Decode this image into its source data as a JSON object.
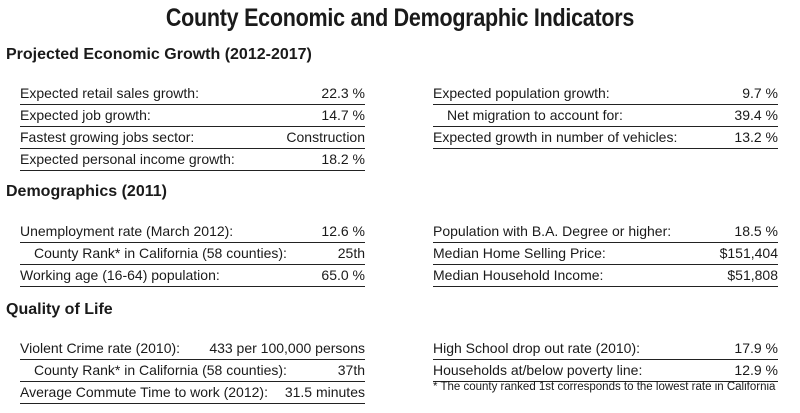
{
  "title": "County Economic and Demographic Indicators",
  "sections": {
    "economic": {
      "heading": "Projected Economic Growth (2012-2017)",
      "left": [
        {
          "label": "Expected retail sales growth:",
          "value": "22.3 %"
        },
        {
          "label": "Expected job growth:",
          "value": "14.7 %"
        },
        {
          "label": "Fastest growing jobs sector:",
          "value": "Construction"
        },
        {
          "label": "Expected personal income growth:",
          "value": "18.2 %"
        }
      ],
      "right": [
        {
          "label": "Expected population growth:",
          "value": "9.7 %"
        },
        {
          "label": "Net migration to account for:",
          "value": "39.4 %"
        },
        {
          "label": "Expected growth in number of vehicles:",
          "value": "13.2 %"
        }
      ]
    },
    "demographics": {
      "heading": "Demographics (2011)",
      "left": [
        {
          "label": "Unemployment rate (March 2012):",
          "value": "12.6 %"
        },
        {
          "label": "County Rank* in California (58 counties):",
          "value": "25th"
        },
        {
          "label": "Working age (16-64) population:",
          "value": "65.0 %"
        }
      ],
      "right": [
        {
          "label": "Population with B.A. Degree or higher:",
          "value": "18.5 %"
        },
        {
          "label": "Median Home Selling Price:",
          "value": "$151,404"
        },
        {
          "label": "Median Household Income:",
          "value": "$51,808"
        }
      ]
    },
    "quality": {
      "heading": "Quality of Life",
      "left": [
        {
          "label": "Violent Crime rate (2010):",
          "value": "433 per 100,000 persons"
        },
        {
          "label": "County Rank* in California (58 counties):",
          "value": "37th"
        },
        {
          "label": "Average Commute Time to work (2012):",
          "value": "31.5 minutes"
        }
      ],
      "right": [
        {
          "label": "High School drop out rate (2010):",
          "value": "17.9 %"
        },
        {
          "label": "Households at/below poverty line:",
          "value": "12.9 %"
        }
      ]
    }
  },
  "footnote": "* The county ranked 1st corresponds to the lowest rate in California"
}
